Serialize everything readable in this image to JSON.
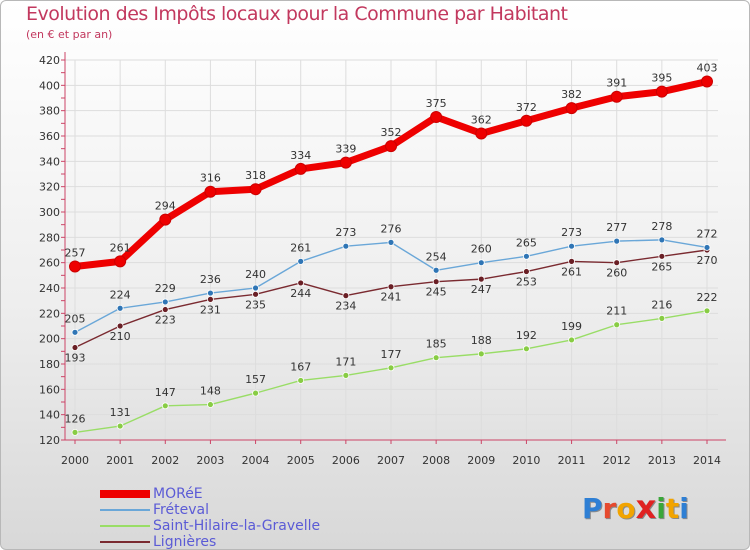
{
  "header": {
    "title": "Evolution des Impôts locaux pour la Commune par Habitant",
    "subtitle": "(en € et par an)"
  },
  "brand": {
    "logo_text": "Proxiti",
    "letter_colors": [
      "#2e7fd4",
      "#e64a2e",
      "#f2a400",
      "#e02222",
      "#3aa63a",
      "#f2a400",
      "#2e7fd4"
    ]
  },
  "chart_data": {
    "type": "line",
    "title": "Evolution des Impôts locaux pour la Commune par Habitant",
    "subtitle": "(en € et par an)",
    "xlabel": "",
    "ylabel": "",
    "x": [
      "2000",
      "2001",
      "2002",
      "2003",
      "2004",
      "2005",
      "2006",
      "2007",
      "2008",
      "2009",
      "2010",
      "2011",
      "2012",
      "2013",
      "2014"
    ],
    "ylim": [
      120,
      420
    ],
    "yticks": [
      120,
      140,
      160,
      180,
      200,
      220,
      240,
      260,
      280,
      300,
      320,
      340,
      360,
      380,
      400,
      420
    ],
    "grid": true,
    "legend_position": "bottom-left",
    "series": [
      {
        "name": "MORéE",
        "color": "#ee0000",
        "values": [
          257,
          261,
          294,
          316,
          318,
          334,
          339,
          352,
          375,
          362,
          372,
          382,
          391,
          395,
          403
        ]
      },
      {
        "name": "Fréteval",
        "color": "#6aa7d8",
        "values": [
          205,
          224,
          229,
          236,
          240,
          261,
          273,
          276,
          254,
          260,
          265,
          273,
          277,
          278,
          272
        ]
      },
      {
        "name": "Saint-Hilaire-la-Gravelle",
        "color": "#99dd66",
        "values": [
          126,
          131,
          147,
          148,
          157,
          167,
          171,
          177,
          185,
          188,
          192,
          199,
          211,
          216,
          222
        ]
      },
      {
        "name": "Lignières",
        "color": "#7a2a30",
        "values": [
          193,
          210,
          223,
          231,
          235,
          244,
          234,
          241,
          245,
          247,
          253,
          261,
          260,
          265,
          270
        ]
      }
    ]
  }
}
